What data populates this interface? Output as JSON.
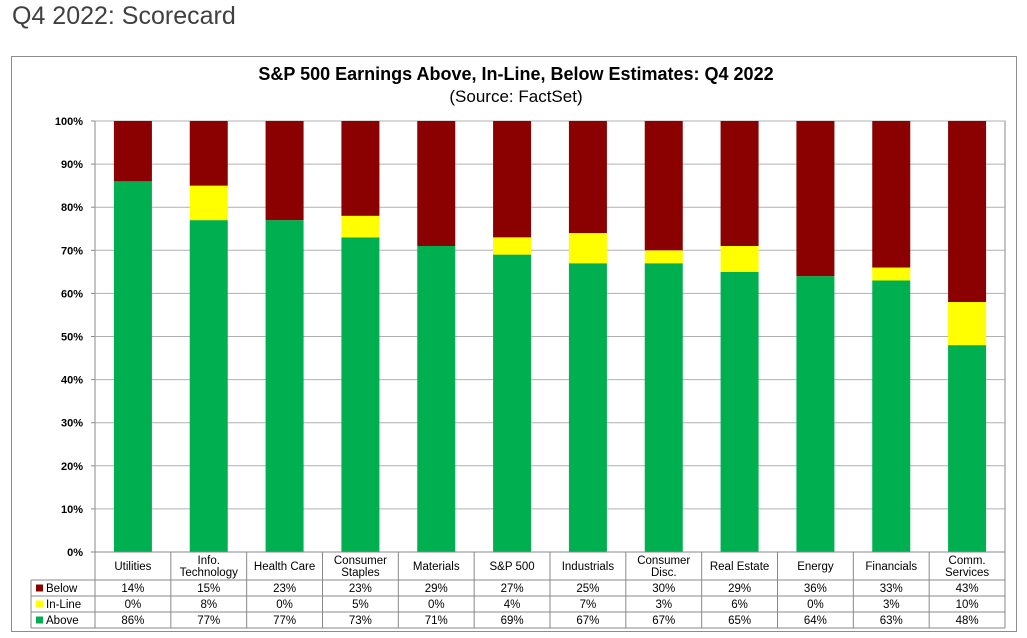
{
  "page": {
    "heading": "Q4 2022: Scorecard"
  },
  "chart_data": {
    "type": "bar",
    "stacked": true,
    "title": "S&P 500 Earnings Above, In-Line, Below Estimates: Q4 2022",
    "subtitle": "(Source: FactSet)",
    "xlabel": "",
    "ylabel": "",
    "ylim": [
      0,
      100
    ],
    "y_ticks": [
      "0%",
      "10%",
      "20%",
      "30%",
      "40%",
      "50%",
      "60%",
      "70%",
      "80%",
      "90%",
      "100%"
    ],
    "grid": true,
    "legend": "data-table-left",
    "categories": [
      "Utilities",
      "Info.\nTechnology",
      "Health Care",
      "Consumer\nStaples",
      "Materials",
      "S&P 500",
      "Industrials",
      "Consumer\nDisc.",
      "Real Estate",
      "Energy",
      "Financials",
      "Comm.\nServices"
    ],
    "series": [
      {
        "name": "Above",
        "color": "#00b050",
        "values": [
          86,
          77,
          77,
          73,
          71,
          69,
          67,
          67,
          65,
          64,
          63,
          48
        ],
        "labels": [
          "86%",
          "77%",
          "77%",
          "73%",
          "71%",
          "69%",
          "67%",
          "67%",
          "65%",
          "64%",
          "63%",
          "48%"
        ]
      },
      {
        "name": "In-Line",
        "color": "#ffff00",
        "values": [
          0,
          8,
          0,
          5,
          0,
          4,
          7,
          3,
          6,
          0,
          3,
          10
        ],
        "labels": [
          "0%",
          "8%",
          "0%",
          "5%",
          "0%",
          "4%",
          "7%",
          "3%",
          "6%",
          "0%",
          "3%",
          "10%"
        ]
      },
      {
        "name": "Below",
        "color": "#8b0000",
        "values": [
          14,
          15,
          23,
          23,
          29,
          27,
          25,
          30,
          29,
          36,
          33,
          43
        ],
        "labels": [
          "14%",
          "15%",
          "23%",
          "23%",
          "29%",
          "27%",
          "25%",
          "30%",
          "29%",
          "36%",
          "33%",
          "43%"
        ]
      }
    ],
    "table_row_order": [
      "Below",
      "In-Line",
      "Above"
    ]
  }
}
